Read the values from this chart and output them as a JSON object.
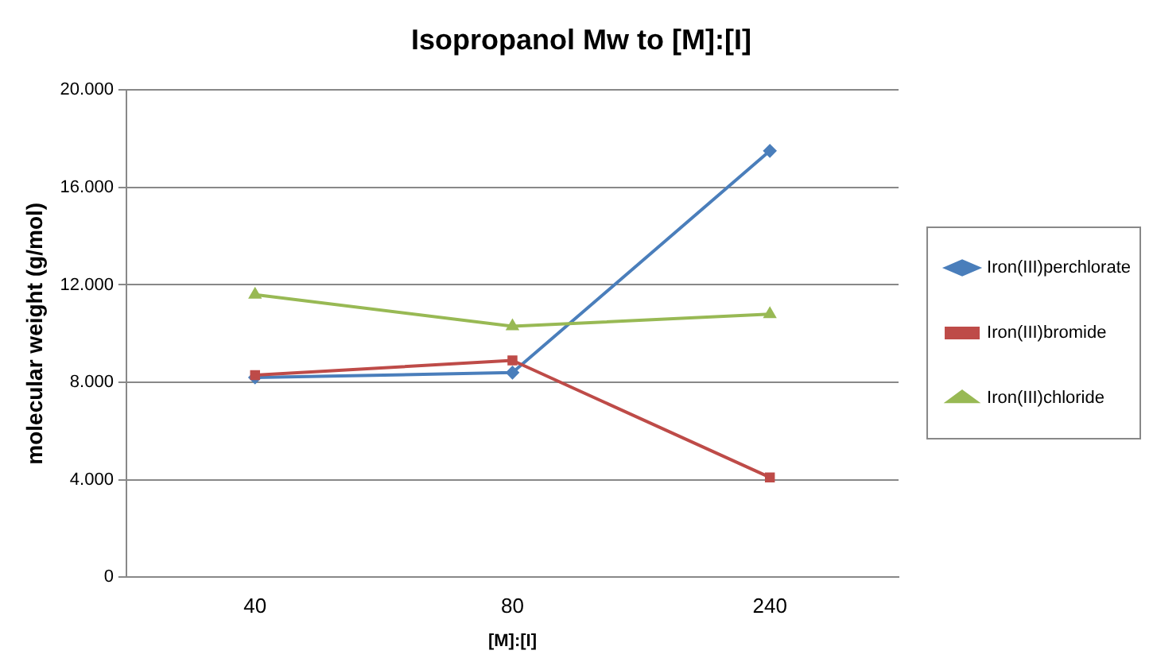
{
  "chart_data": {
    "type": "line",
    "title": "Isopropanol Mw to [M]:[I]",
    "xlabel": "[M]:[I]",
    "ylabel": "molecular weight (g/mol)",
    "categories": [
      "40",
      "80",
      "240"
    ],
    "series": [
      {
        "name": "Iron(III)perchlorate",
        "color": "#4a7ebb",
        "marker": "diamond",
        "values": [
          8200,
          8400,
          17500
        ]
      },
      {
        "name": "Iron(III)bromide",
        "color": "#be4b48",
        "marker": "square",
        "values": [
          8300,
          8900,
          4100
        ]
      },
      {
        "name": "Iron(III)chloride",
        "color": "#98b954",
        "marker": "triangle",
        "values": [
          11600,
          10300,
          10800
        ]
      }
    ],
    "ylim": [
      0,
      20000
    ],
    "yticks": [
      {
        "value": 0,
        "label": "0"
      },
      {
        "value": 4000,
        "label": "4.000"
      },
      {
        "value": 8000,
        "label": "8.000"
      },
      {
        "value": 12000,
        "label": "12.000"
      },
      {
        "value": 16000,
        "label": "16.000"
      },
      {
        "value": 20000,
        "label": "20.000"
      }
    ],
    "grid": "y",
    "legend": "right"
  }
}
